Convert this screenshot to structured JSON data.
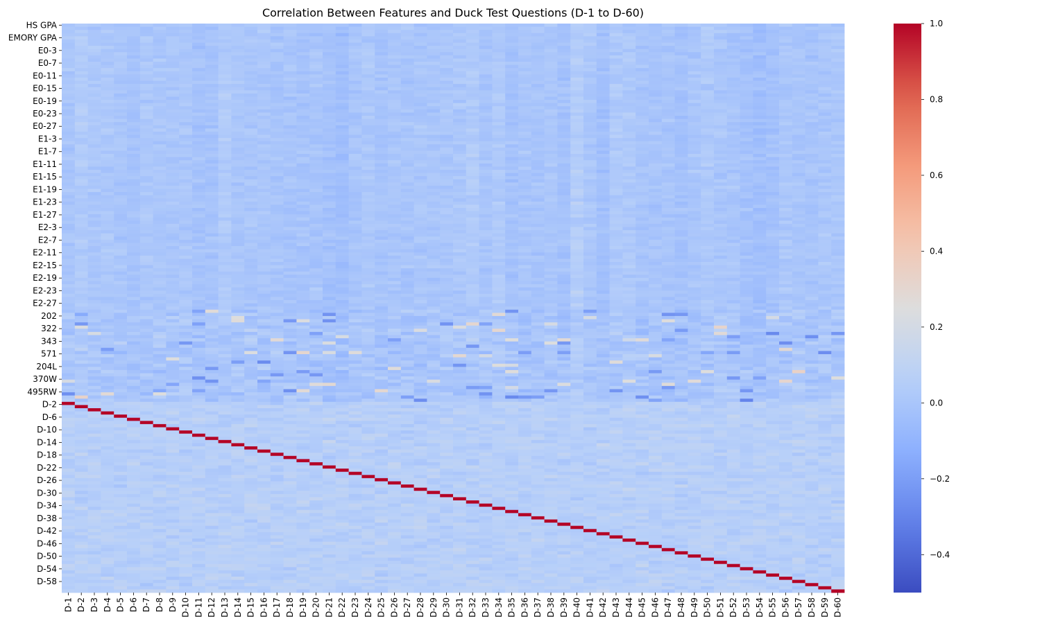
{
  "chart_data": {
    "type": "heatmap",
    "title": "Correlation Between Features and Duck Test Questions (D-1 to D-60)",
    "xlabel": "",
    "ylabel": "",
    "columns": [
      "D-1",
      "D-2",
      "D-3",
      "D-4",
      "D-5",
      "D-6",
      "D-7",
      "D-8",
      "D-9",
      "D-10",
      "D-11",
      "D-12",
      "D-13",
      "D-14",
      "D-15",
      "D-16",
      "D-17",
      "D-18",
      "D-19",
      "D-20",
      "D-21",
      "D-22",
      "D-23",
      "D-24",
      "D-25",
      "D-26",
      "D-27",
      "D-28",
      "D-29",
      "D-30",
      "D-31",
      "D-32",
      "D-33",
      "D-34",
      "D-35",
      "D-36",
      "D-37",
      "D-38",
      "D-39",
      "D-40",
      "D-41",
      "D-42",
      "D-43",
      "D-44",
      "D-45",
      "D-46",
      "D-47",
      "D-48",
      "D-49",
      "D-50",
      "D-51",
      "D-52",
      "D-53",
      "D-54",
      "D-55",
      "D-56",
      "D-57",
      "D-58",
      "D-59",
      "D-60"
    ],
    "row_count": 179,
    "row_tick_labels": [
      {
        "row": 0,
        "label": "HS GPA"
      },
      {
        "row": 2,
        "label": "EMORY GPA"
      },
      {
        "row": 4,
        "label": "E0-3"
      },
      {
        "row": 6,
        "label": "E0-7"
      },
      {
        "row": 8,
        "label": "E0-11"
      },
      {
        "row": 10,
        "label": "E0-15"
      },
      {
        "row": 12,
        "label": "E0-19"
      },
      {
        "row": 14,
        "label": "E0-23"
      },
      {
        "row": 16,
        "label": "E0-27"
      },
      {
        "row": 18,
        "label": "E1-3"
      },
      {
        "row": 20,
        "label": "E1-7"
      },
      {
        "row": 22,
        "label": "E1-11"
      },
      {
        "row": 24,
        "label": "E1-15"
      },
      {
        "row": 26,
        "label": "E1-19"
      },
      {
        "row": 28,
        "label": "E1-23"
      },
      {
        "row": 30,
        "label": "E1-27"
      },
      {
        "row": 32,
        "label": "E2-3"
      },
      {
        "row": 34,
        "label": "E2-7"
      },
      {
        "row": 36,
        "label": "E2-11"
      },
      {
        "row": 38,
        "label": "E2-15"
      },
      {
        "row": 40,
        "label": "E2-19"
      },
      {
        "row": 42,
        "label": "E2-23"
      },
      {
        "row": 44,
        "label": "E2-27"
      },
      {
        "row": 46,
        "label": "202"
      },
      {
        "row": 48,
        "label": "322"
      },
      {
        "row": 50,
        "label": "343"
      },
      {
        "row": 52,
        "label": "571"
      },
      {
        "row": 54,
        "label": "204L"
      },
      {
        "row": 56,
        "label": "370W"
      },
      {
        "row": 58,
        "label": "495RW"
      },
      {
        "row": 60,
        "label": "D-2"
      },
      {
        "row": 62,
        "label": "D-6"
      },
      {
        "row": 64,
        "label": "D-10"
      },
      {
        "row": 66,
        "label": "D-14"
      },
      {
        "row": 68,
        "label": "D-18"
      },
      {
        "row": 70,
        "label": "D-22"
      },
      {
        "row": 72,
        "label": "D-26"
      },
      {
        "row": 74,
        "label": "D-30"
      },
      {
        "row": 76,
        "label": "D-34"
      },
      {
        "row": 78,
        "label": "D-38"
      },
      {
        "row": 80,
        "label": "D-42"
      },
      {
        "row": 82,
        "label": "D-46"
      },
      {
        "row": 84,
        "label": "D-50"
      },
      {
        "row": 86,
        "label": "D-54"
      },
      {
        "row": 88,
        "label": "D-58"
      }
    ],
    "d_block_start_row": 119,
    "diagonal_value": 1.0,
    "colorbar": {
      "colormap": "coolwarm",
      "vmin": -0.5,
      "vmax": 1.0,
      "ticks": [
        1.0,
        0.8,
        0.6,
        0.4,
        0.2,
        0.0,
        -0.2,
        -0.4
      ],
      "tick_labels": [
        "1.0",
        "0.8",
        "0.6",
        "0.4",
        "0.2",
        "0.0",
        "−0.2",
        "−0.4"
      ]
    }
  }
}
